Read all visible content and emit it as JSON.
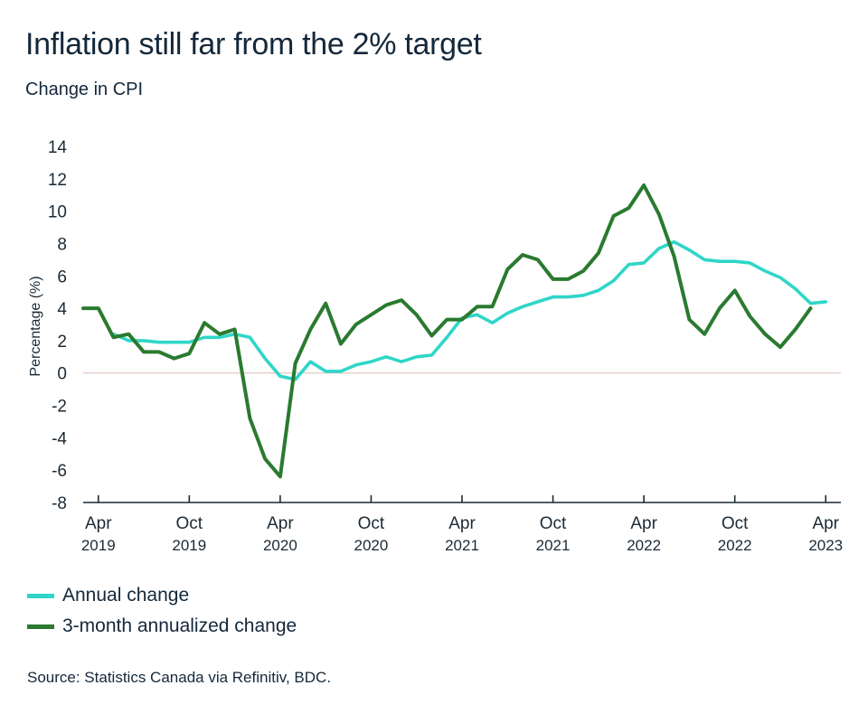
{
  "title": "Inflation still far from the 2% target",
  "subtitle": "Change in CPI",
  "source": "Source: Statistics Canada via Refinitiv, BDC.",
  "chart_data": {
    "type": "line",
    "ylabel": "Percentage (%)",
    "ylim": [
      -8,
      14
    ],
    "yticks": [
      -8,
      -6,
      -4,
      -2,
      0,
      2,
      4,
      6,
      8,
      10,
      12,
      14
    ],
    "x_start": "2019-03",
    "x_end": "2023-05",
    "x_ticks": [
      {
        "month": "2019-04",
        "line1": "Apr",
        "line2": "2019"
      },
      {
        "month": "2019-10",
        "line1": "Oct",
        "line2": "2019"
      },
      {
        "month": "2020-04",
        "line1": "Apr",
        "line2": "2020"
      },
      {
        "month": "2020-10",
        "line1": "Oct",
        "line2": "2020"
      },
      {
        "month": "2021-04",
        "line1": "Apr",
        "line2": "2021"
      },
      {
        "month": "2021-10",
        "line1": "Oct",
        "line2": "2021"
      },
      {
        "month": "2022-04",
        "line1": "Apr",
        "line2": "2022"
      },
      {
        "month": "2022-10",
        "line1": "Oct",
        "line2": "2022"
      },
      {
        "month": "2023-04",
        "line1": "Apr",
        "line2": "2023"
      }
    ],
    "zero_line": true,
    "grid": false,
    "legend_placement": "bottom-left",
    "series": [
      {
        "name": "Annual change",
        "color": "#2fd6c8",
        "points": [
          [
            "2019-05",
            2.4
          ],
          [
            "2019-06",
            2.0
          ],
          [
            "2019-07",
            2.0
          ],
          [
            "2019-08",
            1.9
          ],
          [
            "2019-09",
            1.9
          ],
          [
            "2019-10",
            1.9
          ],
          [
            "2019-11",
            2.2
          ],
          [
            "2019-12",
            2.2
          ],
          [
            "2020-01",
            2.4
          ],
          [
            "2020-02",
            2.2
          ],
          [
            "2020-03",
            0.9
          ],
          [
            "2020-04",
            -0.2
          ],
          [
            "2020-05",
            -0.4
          ],
          [
            "2020-06",
            0.7
          ],
          [
            "2020-07",
            0.1
          ],
          [
            "2020-08",
            0.1
          ],
          [
            "2020-09",
            0.5
          ],
          [
            "2020-10",
            0.7
          ],
          [
            "2020-11",
            1.0
          ],
          [
            "2020-12",
            0.7
          ],
          [
            "2021-01",
            1.0
          ],
          [
            "2021-02",
            1.1
          ],
          [
            "2021-03",
            2.2
          ],
          [
            "2021-04",
            3.4
          ],
          [
            "2021-05",
            3.6
          ],
          [
            "2021-06",
            3.1
          ],
          [
            "2021-07",
            3.7
          ],
          [
            "2021-08",
            4.1
          ],
          [
            "2021-09",
            4.4
          ],
          [
            "2021-10",
            4.7
          ],
          [
            "2021-11",
            4.7
          ],
          [
            "2021-12",
            4.8
          ],
          [
            "2022-01",
            5.1
          ],
          [
            "2022-02",
            5.7
          ],
          [
            "2022-03",
            6.7
          ],
          [
            "2022-04",
            6.8
          ],
          [
            "2022-05",
            7.7
          ],
          [
            "2022-06",
            8.1
          ],
          [
            "2022-07",
            7.6
          ],
          [
            "2022-08",
            7.0
          ],
          [
            "2022-09",
            6.9
          ],
          [
            "2022-10",
            6.9
          ],
          [
            "2022-11",
            6.8
          ],
          [
            "2022-12",
            6.3
          ],
          [
            "2023-01",
            5.9
          ],
          [
            "2023-02",
            5.2
          ],
          [
            "2023-03",
            4.3
          ],
          [
            "2023-04",
            4.4
          ]
        ]
      },
      {
        "name": "3-month annualized change",
        "color": "#2a7a2f",
        "points": [
          [
            "2019-03",
            4.0
          ],
          [
            "2019-04",
            4.0
          ],
          [
            "2019-05",
            2.2
          ],
          [
            "2019-06",
            2.4
          ],
          [
            "2019-07",
            1.3
          ],
          [
            "2019-08",
            1.3
          ],
          [
            "2019-09",
            0.9
          ],
          [
            "2019-10",
            1.2
          ],
          [
            "2019-11",
            3.1
          ],
          [
            "2019-12",
            2.4
          ],
          [
            "2020-01",
            2.7
          ],
          [
            "2020-02",
            -2.8
          ],
          [
            "2020-03",
            -5.3
          ],
          [
            "2020-04",
            -6.4
          ],
          [
            "2020-05",
            0.6
          ],
          [
            "2020-06",
            2.7
          ],
          [
            "2020-07",
            4.3
          ],
          [
            "2020-08",
            1.8
          ],
          [
            "2020-09",
            3.0
          ],
          [
            "2020-10",
            3.6
          ],
          [
            "2020-11",
            4.2
          ],
          [
            "2020-12",
            4.5
          ],
          [
            "2021-01",
            3.6
          ],
          [
            "2021-02",
            2.3
          ],
          [
            "2021-03",
            3.3
          ],
          [
            "2021-04",
            3.3
          ],
          [
            "2021-05",
            4.1
          ],
          [
            "2021-06",
            4.1
          ],
          [
            "2021-07",
            6.4
          ],
          [
            "2021-08",
            7.3
          ],
          [
            "2021-09",
            7.0
          ],
          [
            "2021-10",
            5.8
          ],
          [
            "2021-11",
            5.8
          ],
          [
            "2021-12",
            6.3
          ],
          [
            "2022-01",
            7.4
          ],
          [
            "2022-02",
            9.7
          ],
          [
            "2022-03",
            10.2
          ],
          [
            "2022-04",
            11.6
          ],
          [
            "2022-05",
            9.8
          ],
          [
            "2022-06",
            7.2
          ],
          [
            "2022-07",
            3.3
          ],
          [
            "2022-08",
            2.4
          ],
          [
            "2022-09",
            4.0
          ],
          [
            "2022-10",
            5.1
          ],
          [
            "2022-11",
            3.5
          ],
          [
            "2022-12",
            2.4
          ],
          [
            "2023-01",
            1.6
          ],
          [
            "2023-02",
            2.7
          ],
          [
            "2023-03",
            4.0
          ]
        ]
      }
    ]
  }
}
